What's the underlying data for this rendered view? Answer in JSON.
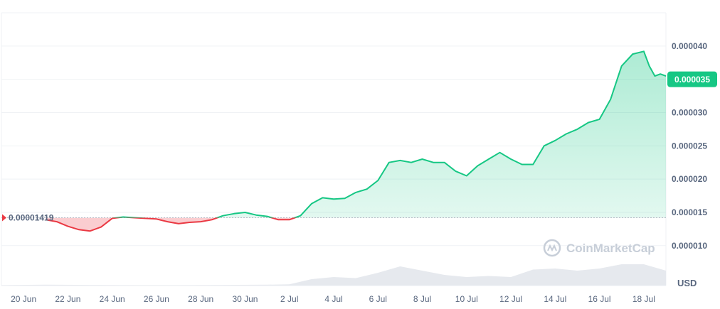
{
  "chart_data": {
    "type": "area",
    "currency": "USD",
    "baseline_value": 1.419e-05,
    "baseline_label": "0.00001419",
    "current_value": 3.5e-05,
    "current_label": "0.000035",
    "watermark": "CoinMarketCap",
    "ylim": [
      4e-06,
      4.5e-05
    ],
    "y_ticks": [
      1e-05,
      1.5e-05,
      2e-05,
      2.5e-05,
      3e-05,
      3.5e-05,
      4e-05
    ],
    "y_tick_labels": [
      "0.000010",
      "0.000015",
      "0.000020",
      "0.000025",
      "0.000030",
      "0.000035",
      "0.000040"
    ],
    "x_tick_labels": [
      "20 Jun",
      "22 Jun",
      "24 Jun",
      "26 Jun",
      "28 Jun",
      "30 Jun",
      "2 Jul",
      "4 Jul",
      "6 Jul",
      "8 Jul",
      "10 Jul",
      "12 Jul",
      "14 Jul",
      "16 Jul",
      "18 Jul"
    ],
    "x_start": "2024-06-19",
    "x_end": "2024-07-19",
    "grid": true,
    "series": [
      {
        "x": [
          "2024-06-21",
          "2024-06-21T12:00",
          "2024-06-22",
          "2024-06-22T12:00",
          "2024-06-23",
          "2024-06-23T12:00",
          "2024-06-24",
          "2024-06-24T12:00",
          "2024-06-25",
          "2024-06-25T12:00",
          "2024-06-26",
          "2024-06-26T12:00",
          "2024-06-27",
          "2024-06-27T12:00",
          "2024-06-28",
          "2024-06-28T12:00",
          "2024-06-29",
          "2024-06-29T12:00",
          "2024-06-30",
          "2024-06-30T12:00",
          "2024-07-01",
          "2024-07-01T12:00",
          "2024-07-02",
          "2024-07-02T12:00",
          "2024-07-03",
          "2024-07-03T12:00",
          "2024-07-04",
          "2024-07-04T12:00",
          "2024-07-05",
          "2024-07-05T12:00",
          "2024-07-06",
          "2024-07-06T12:00",
          "2024-07-07",
          "2024-07-07T12:00",
          "2024-07-08",
          "2024-07-08T12:00",
          "2024-07-09",
          "2024-07-09T12:00",
          "2024-07-10",
          "2024-07-10T12:00",
          "2024-07-11",
          "2024-07-11T12:00",
          "2024-07-12",
          "2024-07-12T12:00",
          "2024-07-13",
          "2024-07-13T12:00",
          "2024-07-14",
          "2024-07-14T12:00",
          "2024-07-15",
          "2024-07-15T12:00",
          "2024-07-16",
          "2024-07-16T12:00",
          "2024-07-17",
          "2024-07-17T12:00",
          "2024-07-18",
          "2024-07-18T06:00",
          "2024-07-18T12:00",
          "2024-07-18T18:00",
          "2024-07-19"
        ],
        "y": [
          1.39e-05,
          1.36e-05,
          1.29e-05,
          1.24e-05,
          1.22e-05,
          1.28e-05,
          1.41e-05,
          1.43e-05,
          1.42e-05,
          1.41e-05,
          1.4e-05,
          1.36e-05,
          1.33e-05,
          1.35e-05,
          1.36e-05,
          1.39e-05,
          1.45e-05,
          1.48e-05,
          1.5e-05,
          1.46e-05,
          1.44e-05,
          1.39e-05,
          1.39e-05,
          1.45e-05,
          1.63e-05,
          1.72e-05,
          1.7e-05,
          1.71e-05,
          1.8e-05,
          1.85e-05,
          1.98e-05,
          2.25e-05,
          2.28e-05,
          2.25e-05,
          2.3e-05,
          2.25e-05,
          2.25e-05,
          2.12e-05,
          2.05e-05,
          2.2e-05,
          2.3e-05,
          2.4e-05,
          2.3e-05,
          2.22e-05,
          2.22e-05,
          2.5e-05,
          2.58e-05,
          2.68e-05,
          2.75e-05,
          2.85e-05,
          2.9e-05,
          3.2e-05,
          3.7e-05,
          3.88e-05,
          3.92e-05,
          3.7e-05,
          3.55e-05,
          3.58e-05,
          3.55e-05
        ]
      }
    ],
    "volume": {
      "x": [
        "2024-06-19",
        "2024-06-21",
        "2024-06-23",
        "2024-06-25",
        "2024-06-27",
        "2024-06-29",
        "2024-07-01",
        "2024-07-02",
        "2024-07-03",
        "2024-07-04",
        "2024-07-05",
        "2024-07-06",
        "2024-07-07",
        "2024-07-08",
        "2024-07-09",
        "2024-07-10",
        "2024-07-11",
        "2024-07-12",
        "2024-07-13",
        "2024-07-14",
        "2024-07-15",
        "2024-07-16",
        "2024-07-17",
        "2024-07-18",
        "2024-07-19"
      ],
      "v": [
        0.02,
        0.04,
        0.03,
        0.02,
        0.02,
        0.03,
        0.04,
        0.06,
        0.3,
        0.4,
        0.35,
        0.6,
        0.9,
        0.7,
        0.5,
        0.4,
        0.45,
        0.4,
        0.75,
        0.8,
        0.7,
        0.8,
        1.0,
        1.0,
        0.7
      ]
    }
  },
  "colors": {
    "up": "#16c784",
    "down": "#ea3943",
    "grid": "#eff2f5",
    "axis_text": "#58667e",
    "watermark": "#c7ced8",
    "volume": "#e6e9ee"
  }
}
